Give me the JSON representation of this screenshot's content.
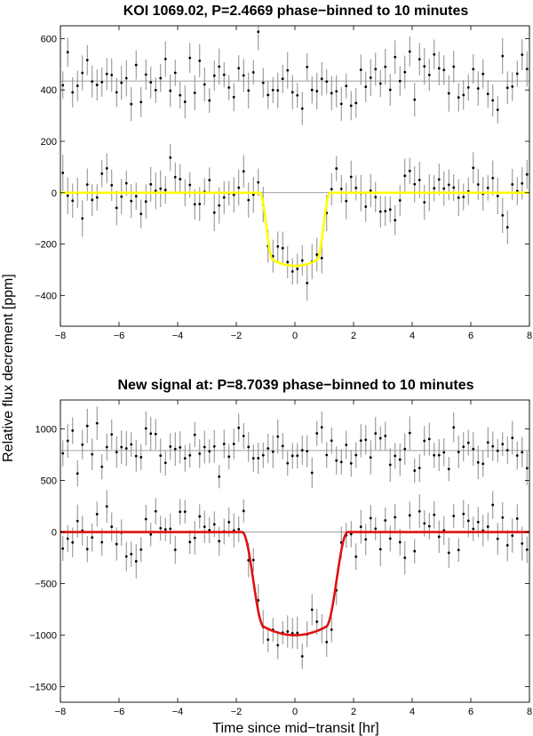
{
  "figure": {
    "xlabel": "Time since mid−transit [hr]",
    "ylabel": "Relative flux decrement [ppm]"
  },
  "colors": {
    "data": "#000000",
    "errorbar": "#8a8a8a",
    "baseline": "#808080"
  },
  "chart_data": [
    {
      "type": "scatter",
      "title": "KOI 1069.02, P=2.4669 phase−binned to 10 minutes",
      "xlim": [
        -8,
        8
      ],
      "ylim": [
        -520,
        650
      ],
      "xticks": [
        -8,
        -6,
        -4,
        -2,
        0,
        2,
        4,
        6,
        8
      ],
      "yticks": [
        -400,
        -200,
        0,
        200,
        400,
        600
      ],
      "xtick_labels": [
        "−8",
        "−6",
        "−4",
        "−2",
        "0",
        "2",
        "4",
        "6",
        "8"
      ],
      "ytick_labels": [
        "−400",
        "−200",
        "0",
        "200",
        "400",
        "600"
      ],
      "grid": false,
      "offset_baseline": 435,
      "zero_baseline": 0,
      "bin_minutes": 10,
      "model": {
        "depth": 285,
        "t_total": 1.2,
        "t_ingress": 0.45,
        "color": "#ffff00"
      },
      "offset_errbar": 60,
      "transit_errbar": 60,
      "seed": 7
    },
    {
      "type": "scatter",
      "title": "New signal at: P=8.7039 phase−binned to 10 minutes",
      "xlim": [
        -8,
        8
      ],
      "ylim": [
        -1650,
        1280
      ],
      "xticks": [
        -8,
        -6,
        -4,
        -2,
        0,
        2,
        4,
        6,
        8
      ],
      "yticks": [
        -1500,
        -1000,
        -500,
        0,
        500,
        1000
      ],
      "xtick_labels": [
        "−8",
        "−6",
        "−4",
        "−2",
        "0",
        "2",
        "4",
        "6",
        "8"
      ],
      "ytick_labels": [
        "−1500",
        "−1000",
        "−500",
        "0",
        "500",
        "1000"
      ],
      "grid": false,
      "offset_baseline": 790,
      "zero_baseline": 0,
      "bin_minutes": 10,
      "model": {
        "depth": 1000,
        "t_total": 1.8,
        "t_ingress": 0.75,
        "color": "#e01010"
      },
      "offset_errbar": 140,
      "transit_errbar": 140,
      "seed": 13
    }
  ]
}
